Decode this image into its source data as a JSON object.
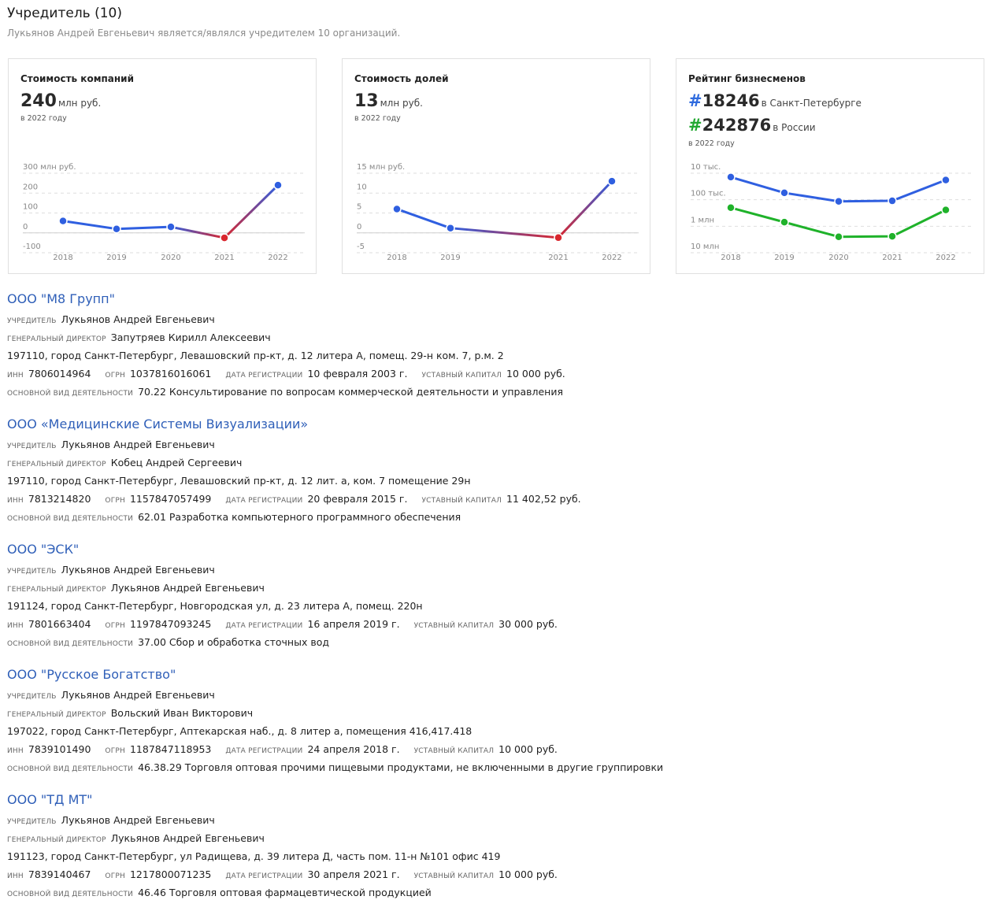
{
  "header": {
    "title": "Учредитель (10)",
    "subtitle": "Лукьянов Андрей Евгеньевич является/являлся учредителем 10 организаций."
  },
  "cards": {
    "company_value": {
      "title": "Стоимость компаний",
      "value": "240",
      "unit": "млн руб.",
      "year_note": "в 2022 году"
    },
    "share_value": {
      "title": "Стоимость долей",
      "value": "13",
      "unit": "млн руб.",
      "year_note": "в 2022 году"
    },
    "rating": {
      "title": "Рейтинг бизнесменов",
      "hash": "#",
      "spb_rank": "18246",
      "spb_label": "в Санкт-Петербурге",
      "ru_rank": "242876",
      "ru_label": "в России",
      "year_note": "в 2022 году"
    }
  },
  "chart_data": [
    {
      "type": "line",
      "x": [
        "2018",
        "2019",
        "2020",
        "2021",
        "2022"
      ],
      "series": [
        {
          "values": [
            60,
            20,
            30,
            -25,
            240
          ]
        }
      ],
      "ylim": [
        -100,
        300
      ],
      "yticks": [
        "300 млн руб.",
        "200",
        "100",
        "0",
        "-100"
      ],
      "ytick_values": [
        300,
        200,
        100,
        0,
        -100
      ],
      "grid": true,
      "colors": {
        "positive": "#2f5fe0",
        "negative": "#d9262e"
      }
    },
    {
      "type": "line",
      "x": [
        "2018",
        "2019",
        "2021",
        "2022"
      ],
      "x_positions": [
        2018,
        2019,
        2021,
        2022
      ],
      "series": [
        {
          "values": [
            6,
            1.2,
            -1.2,
            13
          ]
        }
      ],
      "ylim": [
        -5,
        15
      ],
      "yticks": [
        "15 млн руб.",
        "10",
        "5",
        "0",
        "-5"
      ],
      "ytick_values": [
        15,
        10,
        5,
        0,
        -5
      ],
      "grid": true,
      "colors": {
        "positive": "#2f5fe0",
        "negative": "#d9262e"
      }
    },
    {
      "type": "line",
      "scale": "log-inverted",
      "x": [
        "2018",
        "2019",
        "2020",
        "2021",
        "2022"
      ],
      "yticks": [
        "10 тыс.",
        "100 тыс.",
        "1 млн",
        "10 млн"
      ],
      "ytick_values": [
        10000,
        100000,
        1000000,
        10000000
      ],
      "series": [
        {
          "values": [
            14000,
            55000,
            115000,
            110000,
            18000
          ],
          "color": "#2f5fe0"
        },
        {
          "values": [
            200000,
            700000,
            2500000,
            2400000,
            242876
          ],
          "color": "#1fb22a"
        }
      ],
      "grid": true
    }
  ],
  "companies": [
    {
      "name": "ООО \"М8 Групп\"",
      "founder": "Лукьянов Андрей Евгеньевич",
      "director": "Запутряев Кирилл Алексеевич",
      "address": "197110, город Санкт-Петербург, Левашовский пр-кт, д. 12 литера А, помещ. 29-н ком. 7, р.м. 2",
      "inn": "7806014964",
      "ogrn": "1037816016061",
      "reg_date": "10 февраля 2003 г.",
      "capital": "10 000 руб.",
      "activity": "70.22 Консультирование по вопросам коммерческой деятельности и управления"
    },
    {
      "name": "ООО «Медицинские Системы Визуализации»",
      "founder": "Лукьянов Андрей Евгеньевич",
      "director": "Кобец Андрей Сергеевич",
      "address": "197110, город Санкт-Петербург, Левашовский пр-кт, д. 12 лит. а, ком. 7 помещение 29н",
      "inn": "7813214820",
      "ogrn": "1157847057499",
      "reg_date": "20 февраля 2015 г.",
      "capital": "11 402,52 руб.",
      "activity": "62.01 Разработка компьютерного программного обеспечения"
    },
    {
      "name": "ООО \"ЭСК\"",
      "founder": "Лукьянов Андрей Евгеньевич",
      "director": "Лукьянов Андрей Евгеньевич",
      "address": "191124, город Санкт-Петербург, Новгородская ул, д. 23 литера А, помещ. 220н",
      "inn": "7801663404",
      "ogrn": "1197847093245",
      "reg_date": "16 апреля 2019 г.",
      "capital": "30 000 руб.",
      "activity": "37.00 Сбор и обработка сточных вод"
    },
    {
      "name": "ООО \"Русское Богатство\"",
      "founder": "Лукьянов Андрей Евгеньевич",
      "director": "Вольский Иван Викторович",
      "address": "197022, город Санкт-Петербург, Аптекарская наб., д. 8 литер а, помещения 416,417.418",
      "inn": "7839101490",
      "ogrn": "1187847118953",
      "reg_date": "24 апреля 2018 г.",
      "capital": "10 000 руб.",
      "activity": "46.38.29 Торговля оптовая прочими пищевыми продуктами, не включенными в другие группировки"
    },
    {
      "name": "ООО \"ТД МТ\"",
      "founder": "Лукьянов Андрей Евгеньевич",
      "director": "Лукьянов Андрей Евгеньевич",
      "address": "191123, город Санкт-Петербург, ул Радищева, д. 39 литера Д, часть пом. 11-н №101 офис 419",
      "inn": "7839140467",
      "ogrn": "1217800071235",
      "reg_date": "30 апреля 2021 г.",
      "capital": "10 000 руб.",
      "activity": "46.46 Торговля оптовая фармацевтической продукцией"
    }
  ],
  "labels": {
    "founder": "учредитель",
    "director": "генеральный директор",
    "inn": "инн",
    "ogrn": "огрн",
    "reg_date": "дата регистрации",
    "capital": "уставный капитал",
    "activity": "основной вид деятельности"
  }
}
